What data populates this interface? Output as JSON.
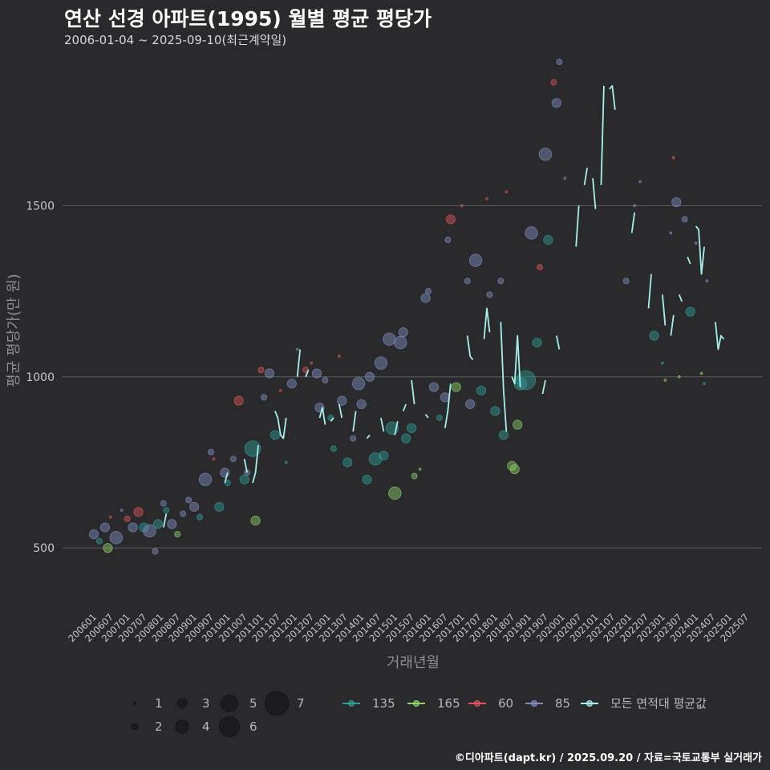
{
  "header": {
    "title": "연산 선경 아파트(1995) 월별 평균 평당가",
    "subtitle": "2006-01-04 ~ 2025-09-10(최근계약일)",
    "credit": "©디아파트(dapt.kr) / 2025.09.20 / 자료=국토교통부 실거래가"
  },
  "colors": {
    "background": "#2a2a2c",
    "grid": "#5c5c5c",
    "avg": "#a6f0ec",
    "s135": "#2f9e97",
    "s165": "#8ed36a",
    "s60": "#e05555",
    "s85": "#7f8ec0"
  },
  "chart_data": {
    "type": "scatter",
    "title": "연산 선경 아파트(1995) 월별 평균 평당가",
    "xlabel": "거래년월",
    "ylabel": "평균 평당가(만 원)",
    "ylim": [
      320,
      1960
    ],
    "yticks": [
      500,
      1000,
      1500
    ],
    "xticks": [
      "200601",
      "200607",
      "200701",
      "200707",
      "200801",
      "200807",
      "200901",
      "200907",
      "201001",
      "201007",
      "201101",
      "201107",
      "201201",
      "201207",
      "201301",
      "201307",
      "201401",
      "201407",
      "201501",
      "201507",
      "201601",
      "201607",
      "201701",
      "201707",
      "201801",
      "201807",
      "201901",
      "201907",
      "202001",
      "202007",
      "202101",
      "202107",
      "202201",
      "202207",
      "202301",
      "202307",
      "202401",
      "202407",
      "202501",
      "202507"
    ],
    "size_legend": [
      1,
      2,
      3,
      4,
      5,
      6,
      7
    ],
    "series_legend": [
      "135",
      "165",
      "60",
      "85",
      "모든 면적대 평균값"
    ],
    "avg_line": [
      [
        0,
        520
      ],
      [
        2,
        530
      ],
      [
        4,
        525
      ],
      [
        6,
        535
      ],
      [
        9,
        540
      ],
      [
        12,
        552
      ],
      [
        14,
        565
      ],
      [
        16,
        560
      ],
      [
        18,
        545
      ],
      [
        20,
        540
      ],
      [
        23,
        538
      ],
      [
        25,
        560
      ],
      [
        26,
        600
      ],
      [
        28,
        605
      ],
      [
        30,
        590
      ],
      [
        32,
        585
      ],
      [
        34,
        570
      ],
      [
        36,
        580
      ],
      [
        39,
        575
      ],
      [
        41,
        620
      ],
      [
        43,
        650
      ],
      [
        45,
        660
      ],
      [
        47,
        690
      ],
      [
        48,
        720
      ],
      [
        50,
        740
      ],
      [
        52,
        735
      ],
      [
        54,
        760
      ],
      [
        55,
        720
      ],
      [
        57,
        690
      ],
      [
        58,
        720
      ],
      [
        59,
        800
      ],
      [
        61,
        870
      ],
      [
        63,
        920
      ],
      [
        65,
        900
      ],
      [
        66,
        880
      ],
      [
        67,
        830
      ],
      [
        68,
        820
      ],
      [
        69,
        880
      ],
      [
        71,
        890
      ],
      [
        73,
        1000
      ],
      [
        74,
        1080
      ],
      [
        76,
        1000
      ],
      [
        77,
        1020
      ],
      [
        79,
        1010
      ],
      [
        81,
        880
      ],
      [
        82,
        910
      ],
      [
        83,
        860
      ],
      [
        85,
        870
      ],
      [
        86,
        880
      ],
      [
        88,
        920
      ],
      [
        89,
        880
      ],
      [
        91,
        830
      ],
      [
        93,
        840
      ],
      [
        94,
        900
      ],
      [
        96,
        860
      ],
      [
        98,
        820
      ],
      [
        99,
        830
      ],
      [
        101,
        850
      ],
      [
        103,
        880
      ],
      [
        104,
        840
      ],
      [
        106,
        850
      ],
      [
        108,
        830
      ],
      [
        109,
        870
      ],
      [
        111,
        900
      ],
      [
        112,
        920
      ],
      [
        114,
        990
      ],
      [
        115,
        920
      ],
      [
        117,
        920
      ],
      [
        119,
        890
      ],
      [
        120,
        880
      ],
      [
        122,
        860
      ],
      [
        124,
        870
      ],
      [
        126,
        850
      ],
      [
        127,
        900
      ],
      [
        128,
        980
      ],
      [
        130,
        1020
      ],
      [
        132,
        1100
      ],
      [
        134,
        1120
      ],
      [
        135,
        1060
      ],
      [
        136,
        1050
      ],
      [
        138,
        1080
      ],
      [
        140,
        1110
      ],
      [
        141,
        1200
      ],
      [
        142,
        1130
      ],
      [
        144,
        1180
      ],
      [
        146,
        1160
      ],
      [
        147,
        960
      ],
      [
        148,
        840
      ],
      [
        150,
        1000
      ],
      [
        151,
        980
      ],
      [
        152,
        1120
      ],
      [
        153,
        970
      ],
      [
        155,
        950
      ],
      [
        157,
        1020
      ],
      [
        159,
        1010
      ],
      [
        161,
        950
      ],
      [
        162,
        990
      ],
      [
        164,
        1060
      ],
      [
        166,
        1120
      ],
      [
        167,
        1080
      ],
      [
        169,
        1150
      ],
      [
        171,
        1260
      ],
      [
        173,
        1380
      ],
      [
        174,
        1500
      ],
      [
        176,
        1560
      ],
      [
        177,
        1610
      ],
      [
        179,
        1580
      ],
      [
        180,
        1490
      ],
      [
        182,
        1560
      ],
      [
        183,
        1850
      ],
      [
        185,
        1840
      ],
      [
        186,
        1850
      ],
      [
        187,
        1780
      ],
      [
        189,
        1280
      ],
      [
        191,
        1390
      ],
      [
        193,
        1420
      ],
      [
        194,
        1480
      ],
      [
        196,
        1480
      ],
      [
        199,
        1200
      ],
      [
        200,
        1300
      ],
      [
        202,
        1300
      ],
      [
        204,
        1240
      ],
      [
        205,
        1150
      ],
      [
        207,
        1120
      ],
      [
        208,
        1180
      ],
      [
        210,
        1240
      ],
      [
        211,
        1220
      ],
      [
        213,
        1350
      ],
      [
        214,
        1330
      ],
      [
        216,
        1440
      ],
      [
        217,
        1430
      ],
      [
        218,
        1300
      ],
      [
        219,
        1380
      ],
      [
        221,
        1230
      ],
      [
        223,
        1160
      ],
      [
        224,
        1080
      ],
      [
        225,
        1120
      ],
      [
        226,
        1110
      ],
      [
        228,
        1250
      ]
    ],
    "points": [
      [
        0,
        540,
        "85",
        3
      ],
      [
        2,
        520,
        "135",
        2
      ],
      [
        4,
        560,
        "85",
        3
      ],
      [
        5,
        500,
        "165",
        3
      ],
      [
        6,
        590,
        "60",
        1
      ],
      [
        8,
        530,
        "85",
        4
      ],
      [
        10,
        610,
        "85",
        1
      ],
      [
        12,
        585,
        "60",
        2
      ],
      [
        14,
        560,
        "85",
        3
      ],
      [
        16,
        605,
        "60",
        3
      ],
      [
        18,
        560,
        "135",
        3
      ],
      [
        20,
        550,
        "85",
        4
      ],
      [
        22,
        490,
        "85",
        2
      ],
      [
        23,
        570,
        "135",
        3
      ],
      [
        25,
        630,
        "85",
        2
      ],
      [
        26,
        610,
        "135",
        2
      ],
      [
        28,
        570,
        "85",
        3
      ],
      [
        30,
        540,
        "165",
        2
      ],
      [
        32,
        600,
        "85",
        2
      ],
      [
        34,
        640,
        "85",
        2
      ],
      [
        36,
        620,
        "85",
        3
      ],
      [
        38,
        590,
        "135",
        2
      ],
      [
        40,
        700,
        "85",
        4
      ],
      [
        42,
        780,
        "85",
        2
      ],
      [
        43,
        760,
        "60",
        1
      ],
      [
        45,
        620,
        "135",
        3
      ],
      [
        47,
        720,
        "85",
        3
      ],
      [
        48,
        690,
        "135",
        2
      ],
      [
        50,
        760,
        "85",
        2
      ],
      [
        52,
        930,
        "60",
        3
      ],
      [
        54,
        700,
        "135",
        3
      ],
      [
        55,
        720,
        "85",
        2
      ],
      [
        57,
        790,
        "135",
        5
      ],
      [
        58,
        580,
        "165",
        3
      ],
      [
        60,
        1020,
        "60",
        2
      ],
      [
        61,
        940,
        "85",
        2
      ],
      [
        63,
        1010,
        "85",
        3
      ],
      [
        65,
        830,
        "135",
        3
      ],
      [
        67,
        960,
        "60",
        1
      ],
      [
        69,
        750,
        "135",
        1
      ],
      [
        71,
        980,
        "85",
        3
      ],
      [
        73,
        1080,
        "85",
        1
      ],
      [
        76,
        1020,
        "60",
        2
      ],
      [
        78,
        1040,
        "60",
        1
      ],
      [
        80,
        1010,
        "85",
        3
      ],
      [
        81,
        910,
        "85",
        3
      ],
      [
        83,
        990,
        "85",
        2
      ],
      [
        85,
        880,
        "135",
        2
      ],
      [
        86,
        790,
        "135",
        2
      ],
      [
        88,
        1060,
        "60",
        1
      ],
      [
        89,
        930,
        "85",
        3
      ],
      [
        91,
        750,
        "135",
        3
      ],
      [
        93,
        820,
        "85",
        2
      ],
      [
        95,
        980,
        "85",
        4
      ],
      [
        96,
        920,
        "85",
        3
      ],
      [
        98,
        700,
        "135",
        3
      ],
      [
        99,
        1000,
        "85",
        3
      ],
      [
        101,
        760,
        "135",
        4
      ],
      [
        103,
        1040,
        "85",
        4
      ],
      [
        104,
        770,
        "135",
        3
      ],
      [
        106,
        1110,
        "85",
        4
      ],
      [
        107,
        850,
        "135",
        4
      ],
      [
        108,
        660,
        "165",
        4
      ],
      [
        110,
        1100,
        "85",
        4
      ],
      [
        111,
        1130,
        "85",
        3
      ],
      [
        112,
        820,
        "135",
        3
      ],
      [
        114,
        850,
        "135",
        3
      ],
      [
        115,
        710,
        "165",
        2
      ],
      [
        117,
        730,
        "165",
        1
      ],
      [
        119,
        1230,
        "85",
        3
      ],
      [
        120,
        1250,
        "85",
        2
      ],
      [
        122,
        970,
        "85",
        3
      ],
      [
        124,
        880,
        "135",
        2
      ],
      [
        126,
        940,
        "85",
        3
      ],
      [
        127,
        1400,
        "85",
        2
      ],
      [
        128,
        1460,
        "60",
        3
      ],
      [
        130,
        970,
        "165",
        3
      ],
      [
        132,
        1500,
        "60",
        1
      ],
      [
        134,
        1280,
        "85",
        2
      ],
      [
        135,
        920,
        "85",
        3
      ],
      [
        137,
        1340,
        "85",
        4
      ],
      [
        139,
        960,
        "135",
        3
      ],
      [
        141,
        1520,
        "60",
        1
      ],
      [
        142,
        1240,
        "85",
        2
      ],
      [
        144,
        900,
        "135",
        3
      ],
      [
        146,
        1280,
        "85",
        2
      ],
      [
        147,
        830,
        "135",
        3
      ],
      [
        148,
        1540,
        "60",
        1
      ],
      [
        150,
        740,
        "165",
        3
      ],
      [
        151,
        730,
        "165",
        3
      ],
      [
        152,
        860,
        "165",
        3
      ],
      [
        153,
        980,
        "135",
        4
      ],
      [
        155,
        990,
        "135",
        6
      ],
      [
        157,
        1420,
        "85",
        4
      ],
      [
        159,
        1100,
        "135",
        3
      ],
      [
        160,
        1320,
        "60",
        2
      ],
      [
        162,
        1650,
        "85",
        4
      ],
      [
        163,
        1400,
        "135",
        3
      ],
      [
        165,
        1860,
        "60",
        2
      ],
      [
        166,
        1800,
        "85",
        3
      ],
      [
        167,
        1920,
        "85",
        2
      ],
      [
        169,
        1580,
        "85",
        1
      ],
      [
        191,
        1280,
        "85",
        2
      ],
      [
        194,
        1500,
        "85",
        1
      ],
      [
        196,
        1570,
        "85",
        1
      ],
      [
        201,
        1120,
        "135",
        3
      ],
      [
        204,
        1040,
        "135",
        1
      ],
      [
        205,
        990,
        "165",
        1
      ],
      [
        207,
        1420,
        "85",
        1
      ],
      [
        208,
        1640,
        "60",
        1
      ],
      [
        209,
        1510,
        "85",
        3
      ],
      [
        210,
        1000,
        "165",
        1
      ],
      [
        212,
        1460,
        "85",
        2
      ],
      [
        214,
        1190,
        "135",
        3
      ],
      [
        216,
        1390,
        "85",
        1
      ],
      [
        218,
        1010,
        "165",
        1
      ],
      [
        219,
        980,
        "135",
        1
      ],
      [
        220,
        1280,
        "85",
        1
      ]
    ]
  }
}
